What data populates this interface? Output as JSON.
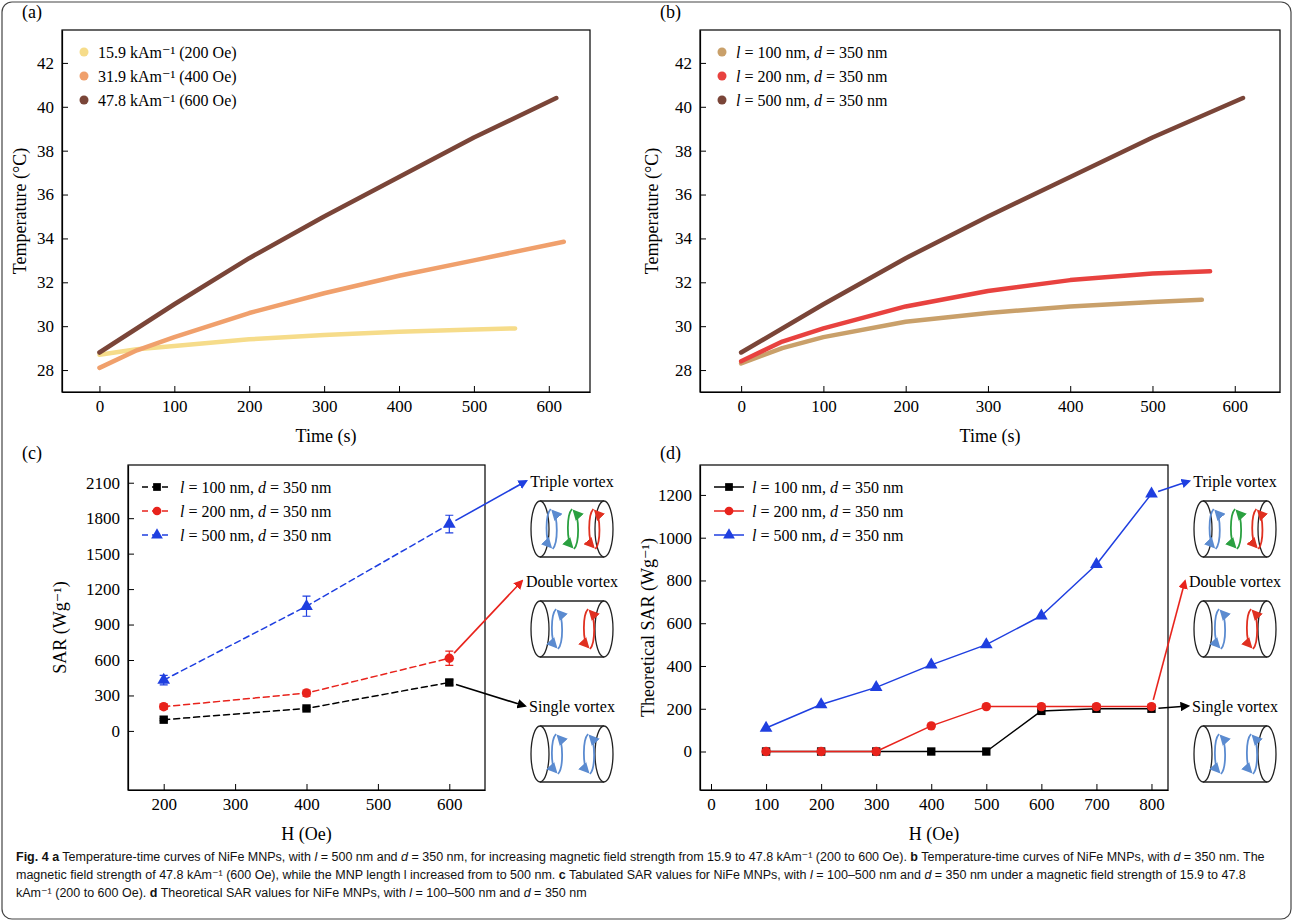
{
  "chart_data": [
    {
      "type": "line",
      "panel": "(a)",
      "xlabel": "Time (s)",
      "ylabel": "Temperature (°C)",
      "xlim": [
        -50,
        655
      ],
      "ylim": [
        27,
        43.5
      ],
      "xticks": [
        0,
        100,
        200,
        300,
        400,
        500,
        600
      ],
      "yticks": [
        28,
        30,
        32,
        34,
        36,
        38,
        40,
        42
      ],
      "legend": "upper left",
      "line_style": "solid",
      "series": [
        {
          "name": "15.9 kAm⁻¹ (200 Oe)",
          "color": "#f6dc8a",
          "x": [
            0,
            50,
            100,
            200,
            300,
            400,
            500,
            555
          ],
          "values": [
            28.7,
            28.95,
            29.1,
            29.4,
            29.6,
            29.75,
            29.85,
            29.9
          ]
        },
        {
          "name": "31.9 kAm⁻¹ (400 Oe)",
          "color": "#f0a06c",
          "x": [
            0,
            50,
            100,
            200,
            300,
            400,
            500,
            620
          ],
          "values": [
            28.1,
            28.9,
            29.5,
            30.6,
            31.5,
            32.3,
            33.0,
            33.85
          ]
        },
        {
          "name": "47.8 kAm⁻¹ (600 Oe)",
          "color": "#7a4538",
          "x": [
            0,
            100,
            200,
            300,
            400,
            500,
            610
          ],
          "values": [
            28.8,
            31.0,
            33.1,
            35.0,
            36.8,
            38.6,
            40.4
          ]
        }
      ]
    },
    {
      "type": "line",
      "panel": "(b)",
      "xlabel": "Time (s)",
      "ylabel": "Temperature (°C)",
      "xlim": [
        -50,
        655
      ],
      "ylim": [
        27,
        43.5
      ],
      "xticks": [
        0,
        100,
        200,
        300,
        400,
        500,
        600
      ],
      "yticks": [
        28,
        30,
        32,
        34,
        36,
        38,
        40,
        42
      ],
      "legend": "upper left",
      "line_style": "solid",
      "series": [
        {
          "name": "l = 100 nm, d = 350 nm",
          "color": "#c9a06a",
          "x": [
            0,
            50,
            100,
            200,
            300,
            400,
            500,
            560
          ],
          "values": [
            28.3,
            29.0,
            29.5,
            30.2,
            30.6,
            30.9,
            31.1,
            31.2
          ]
        },
        {
          "name": "l = 200 nm, d = 350 nm",
          "color": "#e8423f",
          "x": [
            0,
            50,
            100,
            200,
            300,
            400,
            500,
            570
          ],
          "values": [
            28.4,
            29.3,
            29.9,
            30.9,
            31.6,
            32.1,
            32.4,
            32.5
          ]
        },
        {
          "name": "l = 500 nm, d = 350 nm",
          "color": "#7a4538",
          "x": [
            0,
            100,
            200,
            300,
            400,
            500,
            610
          ],
          "values": [
            28.8,
            31.0,
            33.1,
            35.0,
            36.8,
            38.6,
            40.4
          ]
        }
      ]
    },
    {
      "type": "line",
      "panel": "(c)",
      "xlabel": "H (Oe)",
      "ylabel": "SAR (Wg⁻¹)",
      "xlim": [
        150,
        650
      ],
      "ylim": [
        -500,
        2250
      ],
      "xticks": [
        200,
        300,
        400,
        500,
        600
      ],
      "yticks": [
        0,
        300,
        600,
        900,
        1200,
        1500,
        1800,
        2100
      ],
      "legend": "upper left",
      "line_style": "dashed",
      "x": [
        200,
        400,
        600
      ],
      "series": [
        {
          "name": "l = 100 nm, d = 350 nm",
          "color": "#000000",
          "marker": "square",
          "values": [
            95,
            190,
            410
          ],
          "errors": [
            8,
            12,
            22
          ]
        },
        {
          "name": "l = 200 nm, d = 350 nm",
          "color": "#e8231c",
          "marker": "circle",
          "values": [
            205,
            320,
            615
          ],
          "errors": [
            22,
            25,
            60
          ]
        },
        {
          "name": "l = 500 nm, d = 350 nm",
          "color": "#1f3fe0",
          "marker": "triangle",
          "values": [
            430,
            1055,
            1750
          ],
          "errors": [
            40,
            85,
            75
          ]
        }
      ],
      "annotations": [
        "Single vortex",
        "Double vortex",
        "Triple vortex"
      ]
    },
    {
      "type": "line",
      "panel": "(d)",
      "xlabel": "H (Oe)",
      "ylabel": "Theoretical SAR (Wg⁻¹)",
      "xlim": [
        -20,
        830
      ],
      "ylim": [
        -180,
        1340
      ],
      "xticks": [
        0,
        100,
        200,
        300,
        400,
        500,
        600,
        700,
        800
      ],
      "yticks": [
        0,
        200,
        400,
        600,
        800,
        1000,
        1200
      ],
      "legend": "upper left",
      "line_style": "solid",
      "x": [
        100,
        200,
        300,
        400,
        500,
        600,
        700,
        800
      ],
      "series": [
        {
          "name": "l = 100 nm, d = 350 nm",
          "color": "#000000",
          "marker": "square",
          "values": [
            0,
            0,
            0,
            0,
            0,
            190,
            200,
            200
          ]
        },
        {
          "name": "l = 200 nm, d = 350 nm",
          "color": "#e8231c",
          "marker": "circle",
          "values": [
            0,
            0,
            0,
            120,
            210,
            210,
            210,
            210
          ]
        },
        {
          "name": "l = 500 nm, d = 350 nm",
          "color": "#1f3fe0",
          "marker": "triangle",
          "values": [
            110,
            220,
            300,
            405,
            500,
            635,
            875,
            1205
          ]
        }
      ],
      "annotations": [
        "Single vortex",
        "Double vortex",
        "Triple vortex"
      ]
    }
  ],
  "caption": {
    "label": "Fig. 4",
    "parts": [
      {
        "letter": "a",
        "text": "Temperature-time curves of NiFe MNPs, with l = 500 nm and d = 350 nm, for increasing magnetic field strength from 15.9 to 47.8 kAm⁻¹ (200 to 600 Oe)."
      },
      {
        "letter": "b",
        "text": "Temperature-time curves of NiFe MNPs, with d = 350 nm. The magnetic field strength of 47.8 kAm⁻¹ (600 Oe), while the MNP length l increased from to 500 nm."
      },
      {
        "letter": "c",
        "text": "Tabulated SAR values for NiFe MNPs, with l = 100–500 nm and d = 350 nm under a magnetic field strength of 15.9 to 47.8 kAm⁻¹ (200 to 600 Oe)."
      },
      {
        "letter": "d",
        "text": "Theoretical SAR values for NiFe MNPs, with l = 100–500 nm and d = 350 nm"
      }
    ]
  }
}
